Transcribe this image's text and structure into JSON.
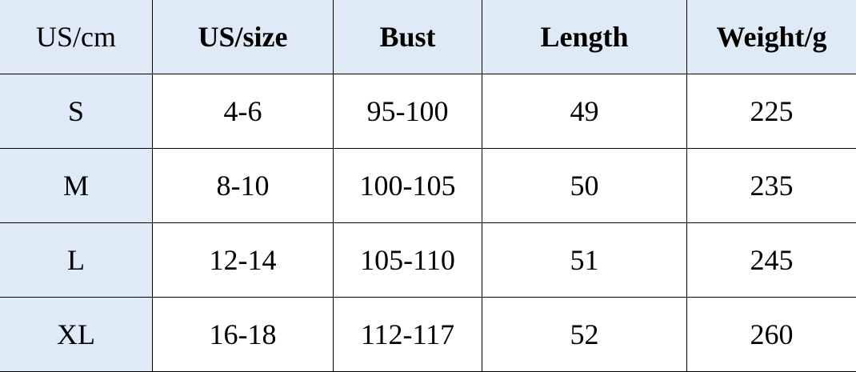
{
  "table": {
    "headers": [
      "US/cm",
      "US/size",
      "Bust",
      "Length",
      "Weight/g"
    ],
    "rows": [
      [
        "S",
        "4-6",
        "95-100",
        "49",
        "225"
      ],
      [
        "M",
        "8-10",
        "100-105",
        "50",
        "235"
      ],
      [
        "L",
        "12-14",
        "105-110",
        "51",
        "245"
      ],
      [
        "XL",
        "16-18",
        "112-117",
        "52",
        "260"
      ]
    ]
  },
  "colors": {
    "header_bg": "#deeaf6",
    "border": "#000000"
  }
}
